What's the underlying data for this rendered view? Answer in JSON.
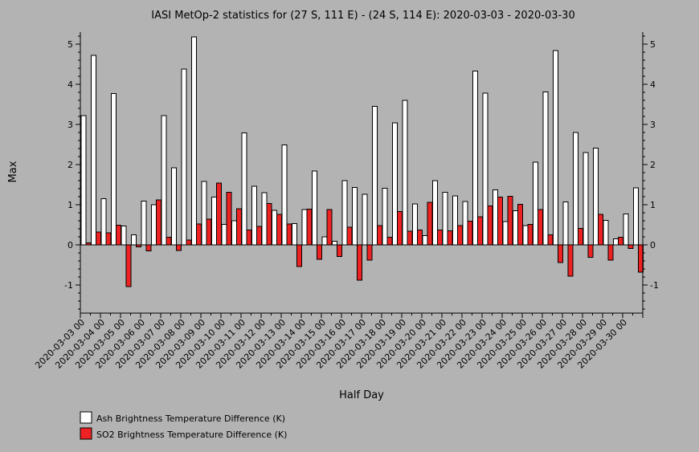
{
  "chart_data": {
    "type": "bar",
    "title": "IASI MetOp-2 statistics for (27 S, 111 E) - (24 S, 114 E): 2020-03-03 - 2020-03-30",
    "xlabel": "Half Day",
    "ylabel": "Max",
    "ylim": [
      -1.7,
      5.3
    ],
    "yticks": [
      -1,
      0,
      1,
      2,
      3,
      4,
      5
    ],
    "grid": false,
    "legend_position": "bottom-left",
    "x_tick_labels": [
      "2020-03-03 00",
      "2020-03-04 00",
      "2020-03-05 00",
      "2020-03-06 00",
      "2020-03-07 00",
      "2020-03-08 00",
      "2020-03-09 00",
      "2020-03-10 00",
      "2020-03-11 00",
      "2020-03-12 00",
      "2020-03-13 00",
      "2020-03-14 00",
      "2020-03-15 00",
      "2020-03-16 00",
      "2020-03-17 00",
      "2020-03-18 00",
      "2020-03-19 00",
      "2020-03-20 00",
      "2020-03-21 00",
      "2020-03-22 00",
      "2020-03-23 00",
      "2020-03-24 00",
      "2020-03-25 00",
      "2020-03-26 00",
      "2020-03-27 00",
      "2020-03-28 00",
      "2020-03-29 00",
      "2020-03-30 00"
    ],
    "series": [
      {
        "name": "Ash Brightness Temperature Difference (K)",
        "color": "#ffffff",
        "values": [
          3.22,
          4.72,
          1.15,
          3.77,
          0.47,
          0.25,
          1.09,
          1.0,
          3.22,
          1.92,
          4.38,
          5.18,
          1.58,
          1.19,
          0.51,
          0.6,
          2.79,
          1.46,
          1.3,
          0.86,
          2.49,
          0.53,
          0.88,
          1.84,
          0.2,
          0.09,
          1.6,
          1.43,
          1.26,
          3.45,
          1.41,
          3.04,
          3.6,
          1.02,
          0.23,
          1.6,
          1.31,
          1.22,
          1.08,
          4.33,
          3.78,
          1.37,
          0.58,
          0.85,
          0.48,
          2.06,
          3.81,
          4.84,
          1.07,
          2.8,
          2.3,
          2.41,
          0.61,
          0.15,
          0.77,
          1.42
        ]
      },
      {
        "name": "SO2 Brightness Temperature Difference (K)",
        "color": "#ee2222",
        "values": [
          0.05,
          0.32,
          0.3,
          0.49,
          -1.04,
          -0.05,
          -0.15,
          1.12,
          0.19,
          -0.14,
          0.12,
          0.52,
          0.64,
          1.54,
          1.31,
          0.9,
          0.37,
          0.46,
          1.03,
          0.76,
          0.52,
          -0.54,
          0.89,
          -0.36,
          0.88,
          -0.29,
          0.44,
          -0.88,
          -0.38,
          0.48,
          0.19,
          0.83,
          0.34,
          0.37,
          1.06,
          0.37,
          0.35,
          0.48,
          0.59,
          0.7,
          0.97,
          1.19,
          1.21,
          1.01,
          0.51,
          0.88,
          0.25,
          -0.44,
          -0.78,
          0.41,
          -0.31,
          0.76,
          -0.38,
          0.19,
          -0.09,
          -0.68
        ]
      }
    ]
  }
}
